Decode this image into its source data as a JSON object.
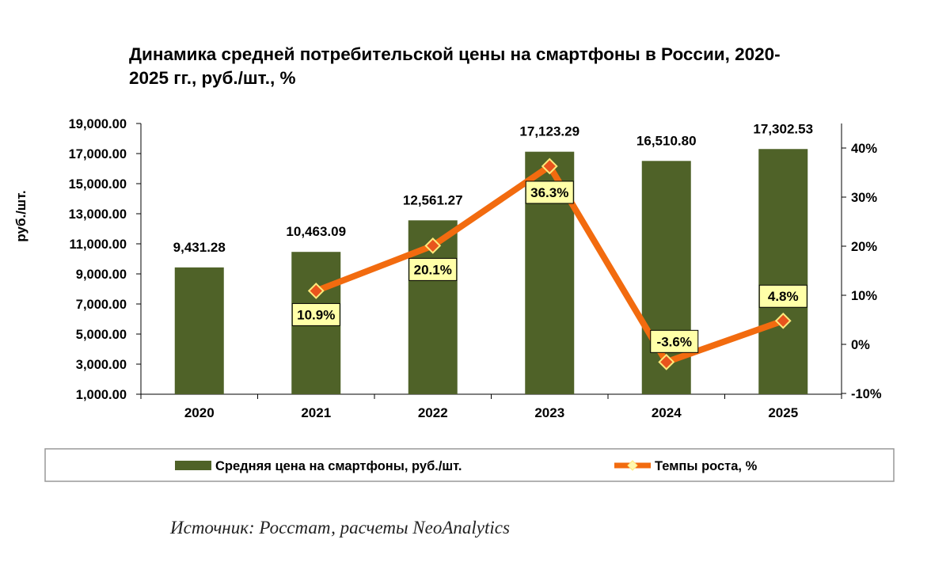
{
  "chart_data": {
    "type": "bar",
    "title": "Динамика средней потребительской цены на смартфоны в России, 2020-2025 гг., руб./шт., %",
    "title_lines": [
      "Динамика средней потребительской цены на смартфоны в России, 2020-",
      "2025 гг., руб./шт., %"
    ],
    "categories": [
      "2020",
      "2021",
      "2022",
      "2023",
      "2024",
      "2025"
    ],
    "ylabel": "руб./шт.",
    "ylim": [
      1000,
      19000
    ],
    "y_ticks": [
      "19,000.00",
      "17,000.00",
      "15,000.00",
      "13,000.00",
      "11,000.00",
      "9,000.00",
      "7,000.00",
      "5,000.00",
      "3,000.00",
      "1,000.00"
    ],
    "y2lim": [
      -10,
      45
    ],
    "y2_ticks": [
      "40%",
      "30%",
      "20%",
      "10%",
      "0%",
      "-10%"
    ],
    "series": [
      {
        "name": "Средняя цена на смартфоны, руб./шт.",
        "type": "bar",
        "color": "#4f6228",
        "values": [
          9431.28,
          10463.09,
          12561.27,
          17123.29,
          16510.8,
          17302.53
        ],
        "labels": [
          "9,431.28",
          "10,463.09",
          "12,561.27",
          "17,123.29",
          "16,510.80",
          "17,302.53"
        ]
      },
      {
        "name": "Темпы роста, %",
        "type": "line",
        "axis": "secondary",
        "color": "#f26b0f",
        "marker_color": "#e8541d",
        "values": [
          null,
          10.9,
          20.1,
          36.3,
          -3.6,
          4.8
        ],
        "labels": [
          "",
          "10.9%",
          "20.1%",
          "36.3%",
          "-3.6%",
          "4.8%"
        ]
      }
    ],
    "legend": [
      "Средняя цена на смартфоны, руб./шт.",
      "Темпы роста, %"
    ],
    "legend_position": "bottom",
    "source": "Источник: Росстат, расчеты NeoAnalytics"
  }
}
